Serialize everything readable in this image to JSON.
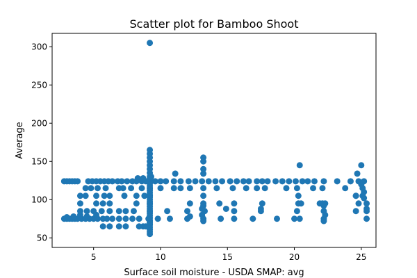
{
  "chart_data": {
    "type": "scatter",
    "title": "Scatter plot for Bamboo Shoot",
    "xlabel": "Surface soil moisture - USDA SMAP: avg",
    "ylabel": "Average",
    "xlim": [
      1.9,
      26.1
    ],
    "ylim": [
      37.5,
      317.5
    ],
    "xticks": [
      5,
      10,
      15,
      20,
      25
    ],
    "yticks": [
      50,
      100,
      150,
      200,
      250,
      300
    ],
    "grid": false,
    "marker_color": "#1f77b4",
    "series": [
      {
        "points": [
          [
            2.8,
            124
          ],
          [
            3.0,
            124
          ],
          [
            3.2,
            124
          ],
          [
            3.4,
            124
          ],
          [
            3.6,
            124
          ],
          [
            3.8,
            124
          ],
          [
            4.6,
            124
          ],
          [
            4.9,
            124
          ],
          [
            5.2,
            124
          ],
          [
            5.5,
            124
          ],
          [
            5.8,
            124
          ],
          [
            6.1,
            124
          ],
          [
            6.4,
            124
          ],
          [
            6.8,
            124
          ],
          [
            7.1,
            124
          ],
          [
            7.5,
            124
          ],
          [
            7.9,
            124
          ],
          [
            8.2,
            124
          ],
          [
            8.6,
            124
          ],
          [
            8.9,
            124
          ],
          [
            9.2,
            124
          ],
          [
            9.6,
            124
          ],
          [
            10.0,
            124
          ],
          [
            10.4,
            124
          ],
          [
            11.0,
            124
          ],
          [
            11.5,
            124
          ],
          [
            12.1,
            124
          ],
          [
            12.6,
            124
          ],
          [
            13.1,
            124
          ],
          [
            13.6,
            124
          ],
          [
            14.1,
            124
          ],
          [
            14.6,
            124
          ],
          [
            15.2,
            124
          ],
          [
            15.7,
            124
          ],
          [
            16.2,
            124
          ],
          [
            16.6,
            124
          ],
          [
            17.2,
            124
          ],
          [
            17.6,
            124
          ],
          [
            18.0,
            124
          ],
          [
            18.6,
            124
          ],
          [
            19.1,
            124
          ],
          [
            19.6,
            124
          ],
          [
            20.1,
            124
          ],
          [
            20.6,
            124
          ],
          [
            21.0,
            124
          ],
          [
            21.5,
            124
          ],
          [
            22.2,
            124
          ],
          [
            23.2,
            124
          ],
          [
            24.2,
            124
          ],
          [
            24.8,
            124
          ],
          [
            25.2,
            124
          ],
          [
            2.8,
            75
          ],
          [
            3.0,
            75
          ],
          [
            3.2,
            75
          ],
          [
            3.4,
            75
          ],
          [
            3.6,
            75
          ],
          [
            3.8,
            75
          ],
          [
            4.1,
            75
          ],
          [
            4.4,
            75
          ],
          [
            4.7,
            75
          ],
          [
            5.0,
            75
          ],
          [
            5.3,
            75
          ],
          [
            5.7,
            75
          ],
          [
            6.0,
            75
          ],
          [
            6.4,
            75
          ],
          [
            6.9,
            75
          ],
          [
            7.4,
            75
          ],
          [
            7.9,
            75
          ],
          [
            8.4,
            75
          ],
          [
            9.1,
            75
          ],
          [
            9.8,
            75
          ],
          [
            10.7,
            75
          ],
          [
            12.0,
            75
          ],
          [
            13.2,
            75
          ],
          [
            14.5,
            75
          ],
          [
            15.5,
            75
          ],
          [
            16.9,
            75
          ],
          [
            18.7,
            75
          ],
          [
            20.0,
            75
          ],
          [
            20.4,
            75
          ],
          [
            22.2,
            75
          ],
          [
            25.4,
            75
          ],
          [
            3.0,
            77
          ],
          [
            3.5,
            78
          ],
          [
            4.0,
            80
          ],
          [
            4.5,
            78
          ],
          [
            5.2,
            80
          ],
          [
            4.0,
            85
          ],
          [
            4.5,
            85
          ],
          [
            5.0,
            85
          ],
          [
            5.6,
            85
          ],
          [
            6.2,
            85
          ],
          [
            6.9,
            85
          ],
          [
            7.4,
            85
          ],
          [
            8.0,
            85
          ],
          [
            9.2,
            85
          ],
          [
            10.5,
            85
          ],
          [
            12.0,
            85
          ],
          [
            13.3,
            85
          ],
          [
            15.5,
            85
          ],
          [
            17.5,
            85
          ],
          [
            20.2,
            85
          ],
          [
            22.2,
            85
          ],
          [
            24.6,
            85
          ],
          [
            25.4,
            85
          ],
          [
            4.0,
            95
          ],
          [
            5.2,
            95
          ],
          [
            5.7,
            95
          ],
          [
            6.2,
            95
          ],
          [
            8.2,
            95
          ],
          [
            9.2,
            95
          ],
          [
            12.2,
            95
          ],
          [
            13.2,
            95
          ],
          [
            14.4,
            95
          ],
          [
            15.5,
            95
          ],
          [
            17.6,
            95
          ],
          [
            20.3,
            95
          ],
          [
            21.9,
            95
          ],
          [
            22.3,
            95
          ],
          [
            24.8,
            95
          ],
          [
            25.4,
            95
          ],
          [
            4.0,
            105
          ],
          [
            4.4,
            105
          ],
          [
            5.2,
            105
          ],
          [
            5.8,
            105
          ],
          [
            6.2,
            105
          ],
          [
            7.3,
            105
          ],
          [
            8.2,
            105
          ],
          [
            8.8,
            105
          ],
          [
            9.2,
            105
          ],
          [
            13.2,
            105
          ],
          [
            20.3,
            105
          ],
          [
            24.6,
            105
          ],
          [
            25.1,
            105
          ],
          [
            4.4,
            115
          ],
          [
            4.8,
            115
          ],
          [
            5.3,
            115
          ],
          [
            5.9,
            115
          ],
          [
            6.9,
            115
          ],
          [
            7.2,
            115
          ],
          [
            7.8,
            115
          ],
          [
            8.6,
            115
          ],
          [
            9.2,
            115
          ],
          [
            10.0,
            115
          ],
          [
            11.0,
            115
          ],
          [
            11.5,
            115
          ],
          [
            12.2,
            115
          ],
          [
            13.2,
            115
          ],
          [
            14.2,
            115
          ],
          [
            15.4,
            115
          ],
          [
            16.4,
            115
          ],
          [
            17.2,
            115
          ],
          [
            17.8,
            115
          ],
          [
            19.4,
            115
          ],
          [
            20.2,
            115
          ],
          [
            21.4,
            115
          ],
          [
            22.1,
            115
          ],
          [
            23.8,
            115
          ],
          [
            25.1,
            115
          ],
          [
            8.3,
            128
          ],
          [
            8.7,
            128
          ],
          [
            9.3,
            130
          ],
          [
            11.1,
            134
          ],
          [
            13.2,
            134
          ],
          [
            20.4,
            145
          ],
          [
            25.0,
            145
          ],
          [
            24.7,
            134
          ],
          [
            13.2,
            140
          ],
          [
            13.2,
            150
          ],
          [
            13.2,
            155
          ],
          [
            9.2,
            305
          ],
          [
            8.4,
            65
          ],
          [
            8.7,
            65
          ],
          [
            8.9,
            65
          ],
          [
            5.7,
            65
          ],
          [
            6.2,
            65
          ],
          [
            6.9,
            65
          ],
          [
            7.4,
            65
          ],
          [
            9.2,
            68
          ],
          [
            9.2,
            72
          ],
          [
            12.2,
            78
          ],
          [
            13.2,
            72
          ],
          [
            22.2,
            72
          ],
          [
            13.2,
            92
          ],
          [
            22.2,
            92
          ],
          [
            14.9,
            88
          ],
          [
            17.5,
            88
          ],
          [
            20.5,
            95
          ],
          [
            25.4,
            88
          ],
          [
            25.2,
            102
          ],
          [
            25.2,
            110
          ],
          [
            25.0,
            120
          ],
          [
            24.6,
            105
          ],
          [
            22.1,
            95
          ],
          [
            22.3,
            80
          ],
          [
            13.1,
            80
          ],
          [
            13.1,
            88
          ]
        ],
        "stack": {
          "x": 9.2,
          "y": [
            55,
            58,
            61,
            64,
            67,
            70,
            73,
            76,
            79,
            82,
            85,
            88,
            91,
            94,
            97,
            100,
            103,
            106,
            109,
            112,
            115,
            118,
            121,
            124,
            127,
            130,
            135,
            140,
            145,
            150,
            155,
            160,
            165
          ]
        }
      }
    ]
  }
}
